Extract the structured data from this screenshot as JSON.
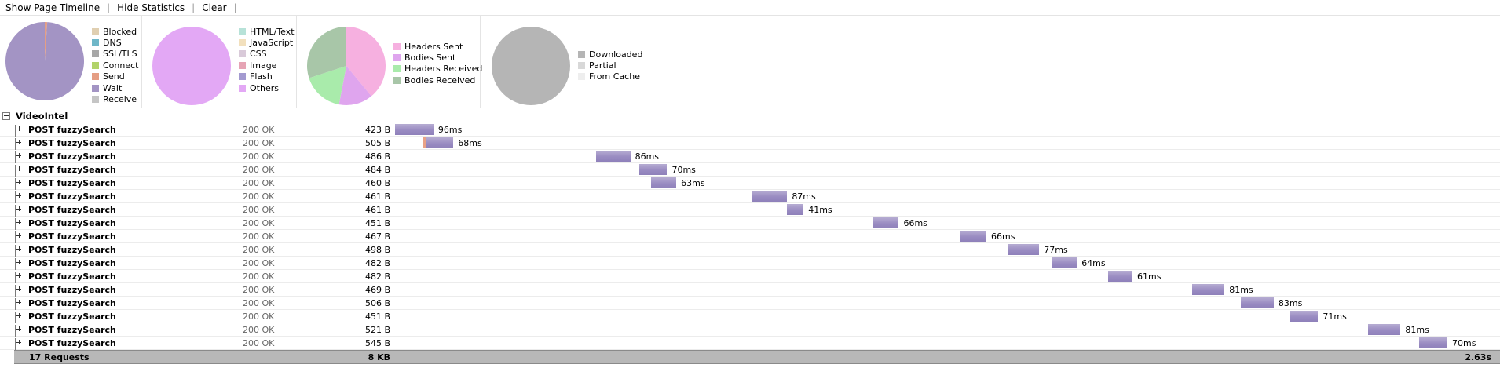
{
  "toolbar": {
    "show_timeline": "Show Page Timeline",
    "hide_stats": "Hide Statistics",
    "clear": "Clear",
    "separator": "|"
  },
  "stats": {
    "timings": {
      "legend": [
        {
          "label": "Blocked",
          "color": "#e0cfb1"
        },
        {
          "label": "DNS",
          "color": "#6fb7c8"
        },
        {
          "label": "SSL/TLS",
          "color": "#a7a7a7"
        },
        {
          "label": "Connect",
          "color": "#b2d36a"
        },
        {
          "label": "Send",
          "color": "#e59e84"
        },
        {
          "label": "Wait",
          "color": "#a394c4"
        },
        {
          "label": "Receive",
          "color": "#c5c5c5"
        }
      ],
      "slices": [
        {
          "label": "Send",
          "value": 1.0,
          "color": "#e59e84"
        },
        {
          "label": "Wait",
          "value": 99.0,
          "color": "#a394c4"
        }
      ]
    },
    "content_types": {
      "legend": [
        {
          "label": "HTML/Text",
          "color": "#b7e2d8"
        },
        {
          "label": "JavaScript",
          "color": "#f2e0bd"
        },
        {
          "label": "CSS",
          "color": "#d9cad9"
        },
        {
          "label": "Image",
          "color": "#e6a4b5"
        },
        {
          "label": "Flash",
          "color": "#a39ad0"
        },
        {
          "label": "Others",
          "color": "#e3a8f5"
        }
      ],
      "slices": [
        {
          "label": "Others",
          "value": 100,
          "color": "#e3a8f5"
        }
      ]
    },
    "traffic": {
      "legend": [
        {
          "label": "Headers Sent",
          "color": "#f6b0e0"
        },
        {
          "label": "Bodies Sent",
          "color": "#dfa5ee"
        },
        {
          "label": "Headers Received",
          "color": "#a9ebab"
        },
        {
          "label": "Bodies Received",
          "color": "#a8c6a8"
        }
      ],
      "slices": [
        {
          "label": "Headers Sent",
          "value": 39,
          "color": "#f6b0e0"
        },
        {
          "label": "Bodies Sent",
          "value": 14,
          "color": "#dfa5ee"
        },
        {
          "label": "Headers Received",
          "value": 17,
          "color": "#a9ebab"
        },
        {
          "label": "Bodies Received",
          "value": 30,
          "color": "#a8c6a8"
        }
      ]
    },
    "cache": {
      "legend": [
        {
          "label": "Downloaded",
          "color": "#b5b5b5"
        },
        {
          "label": "Partial",
          "color": "#d8d8d8"
        },
        {
          "label": "From Cache",
          "color": "#eeeeee"
        }
      ],
      "slices": [
        {
          "label": "Downloaded",
          "value": 100,
          "color": "#b5b5b5"
        }
      ]
    }
  },
  "net": {
    "group_title": "VideoIntel",
    "total_time_ms": 2630,
    "requests": [
      {
        "url": "POST fuzzySearch",
        "status": "200 OK",
        "size": "423 B",
        "start_ms": 0,
        "duration_ms": 96,
        "label": "96ms",
        "send_ms": 0
      },
      {
        "url": "POST fuzzySearch",
        "status": "200 OK",
        "size": "505 B",
        "start_ms": 70,
        "duration_ms": 68,
        "label": "68ms",
        "send_ms": 8
      },
      {
        "url": "POST fuzzySearch",
        "status": "200 OK",
        "size": "486 B",
        "start_ms": 502,
        "duration_ms": 86,
        "label": "86ms",
        "send_ms": 0
      },
      {
        "url": "POST fuzzySearch",
        "status": "200 OK",
        "size": "484 B",
        "start_ms": 610,
        "duration_ms": 70,
        "label": "70ms",
        "send_ms": 0
      },
      {
        "url": "POST fuzzySearch",
        "status": "200 OK",
        "size": "460 B",
        "start_ms": 640,
        "duration_ms": 63,
        "label": "63ms",
        "send_ms": 0
      },
      {
        "url": "POST fuzzySearch",
        "status": "200 OK",
        "size": "461 B",
        "start_ms": 893,
        "duration_ms": 87,
        "label": "87ms",
        "send_ms": 0
      },
      {
        "url": "POST fuzzySearch",
        "status": "200 OK",
        "size": "461 B",
        "start_ms": 980,
        "duration_ms": 41,
        "label": "41ms",
        "send_ms": 0
      },
      {
        "url": "POST fuzzySearch",
        "status": "200 OK",
        "size": "451 B",
        "start_ms": 1193,
        "duration_ms": 66,
        "label": "66ms",
        "send_ms": 0
      },
      {
        "url": "POST fuzzySearch",
        "status": "200 OK",
        "size": "467 B",
        "start_ms": 1412,
        "duration_ms": 66,
        "label": "66ms",
        "send_ms": 0
      },
      {
        "url": "POST fuzzySearch",
        "status": "200 OK",
        "size": "498 B",
        "start_ms": 1533,
        "duration_ms": 77,
        "label": "77ms",
        "send_ms": 0
      },
      {
        "url": "POST fuzzySearch",
        "status": "200 OK",
        "size": "482 B",
        "start_ms": 1640,
        "duration_ms": 64,
        "label": "64ms",
        "send_ms": 0
      },
      {
        "url": "POST fuzzySearch",
        "status": "200 OK",
        "size": "482 B",
        "start_ms": 1782,
        "duration_ms": 61,
        "label": "61ms",
        "send_ms": 0
      },
      {
        "url": "POST fuzzySearch",
        "status": "200 OK",
        "size": "469 B",
        "start_ms": 1992,
        "duration_ms": 81,
        "label": "81ms",
        "send_ms": 0
      },
      {
        "url": "POST fuzzySearch",
        "status": "200 OK",
        "size": "506 B",
        "start_ms": 2113,
        "duration_ms": 83,
        "label": "83ms",
        "send_ms": 0
      },
      {
        "url": "POST fuzzySearch",
        "status": "200 OK",
        "size": "451 B",
        "start_ms": 2236,
        "duration_ms": 71,
        "label": "71ms",
        "send_ms": 0
      },
      {
        "url": "POST fuzzySearch",
        "status": "200 OK",
        "size": "521 B",
        "start_ms": 2432,
        "duration_ms": 81,
        "label": "81ms",
        "send_ms": 0
      },
      {
        "url": "POST fuzzySearch",
        "status": "200 OK",
        "size": "545 B",
        "start_ms": 2560,
        "duration_ms": 70,
        "label": "70ms",
        "send_ms": 0
      }
    ],
    "summary": {
      "count": "17 Requests",
      "size": "8 KB",
      "time": "2.63s"
    }
  }
}
